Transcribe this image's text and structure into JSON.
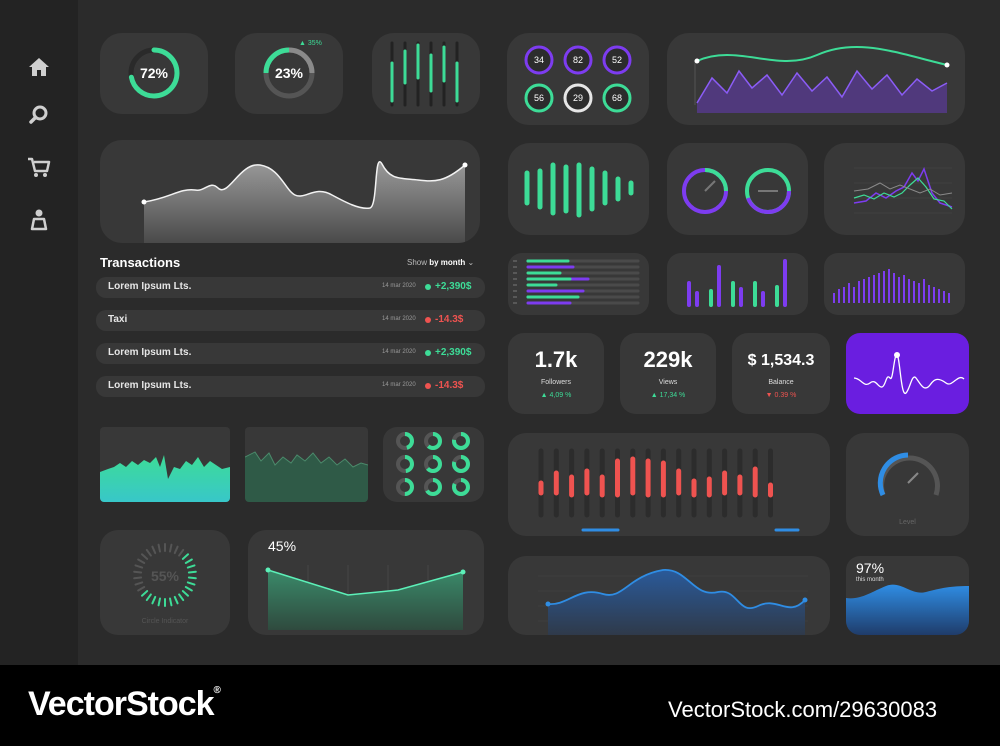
{
  "colors": {
    "background": "#2b2b2b",
    "sidebar": "#232323",
    "card": "#383838",
    "green": "#3ddc97",
    "purple": "#7d3cf0",
    "red": "#ef5350",
    "blue": "#2f8de4"
  },
  "sidebar": {
    "items": [
      {
        "icon": "home-icon"
      },
      {
        "icon": "search-icon"
      },
      {
        "icon": "cart-icon"
      },
      {
        "icon": "user-icon"
      }
    ]
  },
  "kpi": {
    "ring1": {
      "label": "72%",
      "value": 72
    },
    "ring2": {
      "label": "23%",
      "value": 23,
      "change": "▲ 35%"
    }
  },
  "mini_rings": [
    "34",
    "82",
    "52",
    "56",
    "29",
    "68"
  ],
  "transactions": {
    "title": "Transactions",
    "show_label": "Show",
    "period_label": "by month",
    "rows": [
      {
        "name": "Lorem Ipsum Lts.",
        "date": "14 mar 2020",
        "amount": "+2,390$",
        "status": "positive"
      },
      {
        "name": "Taxi",
        "date": "14 mar 2020",
        "amount": "-14.3$",
        "status": "negative"
      },
      {
        "name": "Lorem Ipsum Lts.",
        "date": "14 mar 2020",
        "amount": "+2,390$",
        "status": "positive"
      },
      {
        "name": "Lorem Ipsum Lts.",
        "date": "14 mar 2020",
        "amount": "-14.3$",
        "status": "negative"
      }
    ]
  },
  "stats": [
    {
      "value": "1.7k",
      "label": "Followers",
      "change": "▲ 4,09 %",
      "trend": "up"
    },
    {
      "value": "229k",
      "label": "Views",
      "change": "▲ 17,34 %",
      "trend": "up"
    },
    {
      "value": "$ 1,534.3",
      "label": "Balance",
      "change": "▼ 0.39 %",
      "trend": "down"
    }
  ],
  "progress_card": {
    "value": "55%",
    "label": "Circle Indicator"
  },
  "line_card": {
    "value": "45%"
  },
  "gauge": {
    "label": "Level",
    "value": 0.5
  },
  "area_card": {
    "value": "97%",
    "label": "this month"
  },
  "footer": {
    "brand": "VectorStock",
    "registered": "®",
    "url": "VectorStock.com/29630083"
  }
}
